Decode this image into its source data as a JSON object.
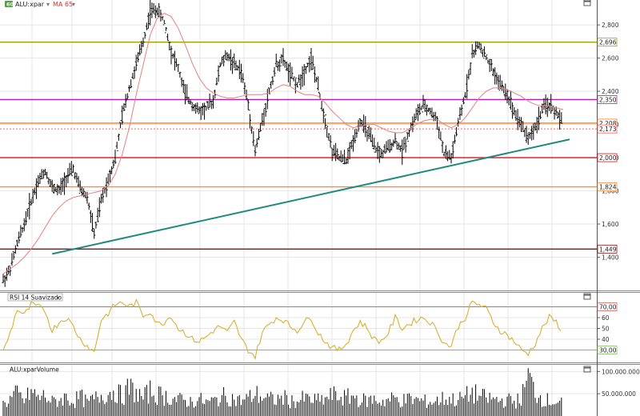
{
  "window_controls": {
    "maximize_glyph": "□"
  },
  "price_panel": {
    "symbol_badge": "60",
    "symbol_label": "ALU:xpar",
    "ma_label": "MA 65",
    "dropdown_glyph": "▾"
  },
  "rsi_panel": {
    "title": "RSI 14 Suavizado",
    "dropdown_glyph": "▾"
  },
  "volume_panel": {
    "title": "ALU:xparVolume"
  },
  "colors": {
    "price_bars": "#000000",
    "moving_average": "#e48080",
    "trendline": "#1f8a80",
    "rsi_line": "#d4aa20",
    "rsi_70_line": "#e06060",
    "rsi_30_line": "#80c060",
    "volume_bars": "#000000",
    "grid": "#e5e5e5",
    "symbol_badge_bg": "#5a9a4a"
  },
  "chart_data": [
    {
      "type": "bar",
      "style": "ohlc",
      "symbol": "ALU:xpar",
      "ylim": [
        1200,
        2950
      ],
      "yticks": [
        1400,
        1600,
        1800,
        2000,
        2200,
        2400,
        2600,
        2800
      ],
      "ytick_labels": [
        "1,400",
        "1,600",
        "1,800",
        "2,000",
        "2,200",
        "2,400",
        "2,600",
        "2,800"
      ],
      "grid": true,
      "close_series_approx": [
        1260,
        1330,
        1480,
        1600,
        1740,
        1860,
        1920,
        1820,
        1800,
        1880,
        1930,
        1810,
        1760,
        1540,
        1740,
        1870,
        2000,
        2250,
        2420,
        2560,
        2700,
        2880,
        2890,
        2820,
        2640,
        2540,
        2380,
        2320,
        2280,
        2300,
        2340,
        2560,
        2620,
        2560,
        2520,
        2320,
        2040,
        2220,
        2400,
        2560,
        2590,
        2500,
        2440,
        2520,
        2600,
        2420,
        2220,
        2040,
        2000,
        1980,
        2100,
        2220,
        2160,
        2060,
        2020,
        2060,
        2100,
        2040,
        2160,
        2260,
        2310,
        2280,
        2220,
        2020,
        2000,
        2200,
        2380,
        2620,
        2680,
        2600,
        2520,
        2440,
        2380,
        2280,
        2200,
        2120,
        2180,
        2290,
        2320,
        2270,
        2200
      ],
      "ma": {
        "name": "MA 65",
        "values_approx": [
          1300,
          1330,
          1360,
          1400,
          1450,
          1510,
          1580,
          1650,
          1700,
          1740,
          1760,
          1770,
          1780,
          1790,
          1800,
          1830,
          1900,
          2020,
          2180,
          2380,
          2560,
          2740,
          2840,
          2870,
          2850,
          2780,
          2680,
          2570,
          2480,
          2420,
          2390,
          2370,
          2360,
          2360,
          2370,
          2380,
          2380,
          2380,
          2390,
          2420,
          2440,
          2430,
          2400,
          2380,
          2380,
          2370,
          2330,
          2280,
          2240,
          2200,
          2180,
          2190,
          2200,
          2200,
          2180,
          2160,
          2150,
          2150,
          2170,
          2200,
          2220,
          2230,
          2230,
          2200,
          2180,
          2200,
          2240,
          2300,
          2360,
          2400,
          2420,
          2420,
          2410,
          2390,
          2370,
          2340,
          2320,
          2310,
          2310,
          2300,
          2290
        ]
      },
      "trendline": {
        "from_x_index": 7,
        "from_y": 1420,
        "to_x_index": 80,
        "to_y": 2110
      },
      "horizontal_levels": [
        {
          "value": 2696,
          "label": "2,696",
          "color": "#a0a000"
        },
        {
          "value": 2350,
          "label": "2,350",
          "color": "#b020b0"
        },
        {
          "value": 2208,
          "label": "2,208",
          "color": "#ff7a1a"
        },
        {
          "value": 2173,
          "label": "2,173",
          "color": "#ff5a5a",
          "dashed": true
        },
        {
          "value": 2000,
          "label": "2,000",
          "color": "#e01010"
        },
        {
          "value": 1824,
          "label": "1,824",
          "color": "#ff8a3a"
        },
        {
          "value": 1449,
          "label": "1,449",
          "color": "#8a1010"
        }
      ],
      "last_value_label": "2,173"
    },
    {
      "type": "line",
      "name": "RSI 14 Suavizado",
      "ylim": [
        20,
        80
      ],
      "yticks": [
        40,
        50,
        60
      ],
      "ytick_labels": [
        "40",
        "50",
        "60"
      ],
      "levels": [
        {
          "value": 70,
          "label": "70,00"
        },
        {
          "value": 30,
          "label": "30,00"
        }
      ],
      "values_approx": [
        28,
        46,
        68,
        62,
        72,
        70,
        66,
        48,
        56,
        60,
        52,
        40,
        34,
        28,
        58,
        64,
        72,
        74,
        70,
        74,
        62,
        66,
        54,
        56,
        62,
        50,
        46,
        40,
        38,
        42,
        48,
        52,
        46,
        56,
        40,
        30,
        24,
        46,
        54,
        60,
        58,
        52,
        48,
        56,
        60,
        46,
        38,
        32,
        30,
        36,
        48,
        56,
        50,
        40,
        38,
        46,
        60,
        50,
        54,
        58,
        60,
        56,
        48,
        36,
        34,
        52,
        60,
        74,
        72,
        68,
        56,
        48,
        44,
        38,
        30,
        27,
        36,
        50,
        60,
        56,
        46
      ]
    },
    {
      "type": "bar",
      "name": "ALU:xparVolume",
      "ylim": [
        0,
        115000000
      ],
      "yticks": [
        50000000,
        100000000
      ],
      "ytick_labels": [
        "50.000.000",
        "100.000.000"
      ],
      "values_approx": [
        30000000,
        42000000,
        55000000,
        38000000,
        60000000,
        45000000,
        50000000,
        35000000,
        40000000,
        47000000,
        36000000,
        48000000,
        33000000,
        42000000,
        52000000,
        56000000,
        64000000,
        48000000,
        70000000,
        58000000,
        44000000,
        62000000,
        53000000,
        50000000,
        45000000,
        40000000,
        38000000,
        36000000,
        41000000,
        34000000,
        37000000,
        46000000,
        50000000,
        42000000,
        38000000,
        44000000,
        55000000,
        48000000,
        42000000,
        40000000,
        46000000,
        38000000,
        36000000,
        44000000,
        40000000,
        38000000,
        42000000,
        52000000,
        48000000,
        45000000,
        50000000,
        40000000,
        38000000,
        42000000,
        36000000,
        40000000,
        44000000,
        38000000,
        42000000,
        40000000,
        37000000,
        35000000,
        38000000,
        44000000,
        42000000,
        40000000,
        48000000,
        58000000,
        50000000,
        44000000,
        42000000,
        38000000,
        40000000,
        36000000,
        42000000,
        98000000,
        60000000,
        44000000,
        38000000,
        36000000,
        30000000
      ]
    }
  ]
}
